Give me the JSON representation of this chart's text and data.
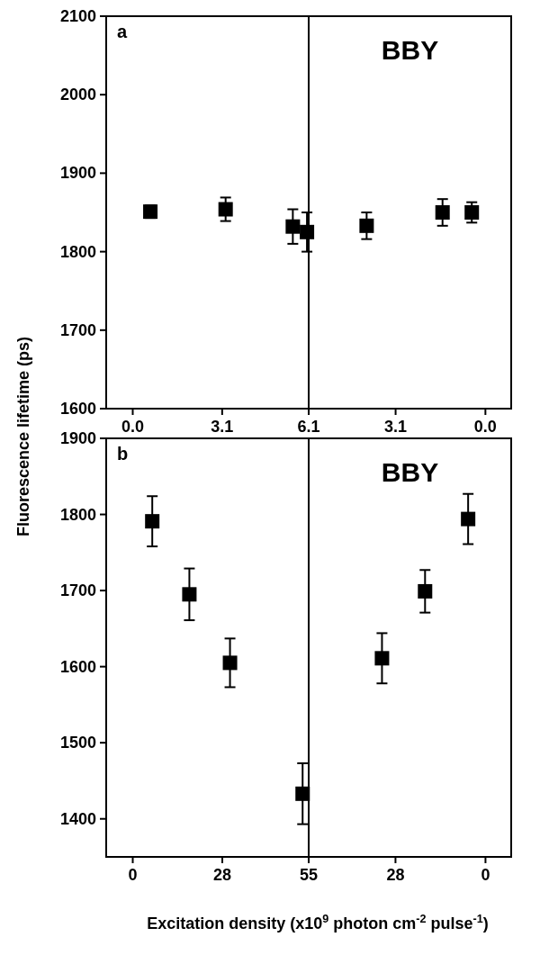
{
  "chart_data": [
    {
      "type": "scatter",
      "ylabel": "Fluorescence lifetime (ps)",
      "annotations": [
        "a"
      ],
      "xlim": [
        -0.92,
        6.1
      ],
      "xticks": [
        {
          "value": 0,
          "label": "0.0"
        },
        3.1,
        6.1
      ],
      "ylim": [
        1600,
        2100
      ],
      "yticks": [
        1600,
        1700,
        1800,
        1900,
        2000,
        2100
      ],
      "marker": "square",
      "grid": false,
      "series": [
        {
          "color": "#000000",
          "x": [
            0.61,
            3.22,
            5.55,
            6.04
          ],
          "values": [
            1851,
            1854,
            1832,
            1825
          ],
          "errors": [
            8,
            15,
            22,
            25
          ]
        }
      ]
    },
    {
      "type": "scatter",
      "annotations": [
        "BBY"
      ],
      "xlim": [
        6.1,
        -0.89
      ],
      "xticks": [
        3.1,
        {
          "value": 0,
          "label": "0.0"
        }
      ],
      "ylim": [
        1600,
        2100
      ],
      "tick_labels": "x",
      "marker": "square",
      "grid": false,
      "series": [
        {
          "color": "#000000",
          "x": [
            4.1,
            1.48,
            0.47
          ],
          "values": [
            1833,
            1850,
            1850
          ],
          "errors": [
            17,
            17,
            13
          ]
        }
      ]
    },
    {
      "type": "scatter",
      "annotations": [
        "b"
      ],
      "xlim": [
        -8.3,
        55
      ],
      "xticks": [
        0,
        28,
        55
      ],
      "ylim": [
        1350,
        1900
      ],
      "yticks": [
        1400,
        1500,
        1600,
        1700,
        1800,
        1900
      ],
      "marker": "square",
      "grid": false,
      "series": [
        {
          "color": "#000000",
          "x": [
            6.1,
            17.7,
            30.4,
            53.1
          ],
          "values": [
            1791,
            1695,
            1605,
            1433
          ],
          "errors": [
            33,
            34,
            32,
            40
          ]
        }
      ]
    },
    {
      "type": "scatter",
      "xlabel": "Excitation density (x10$^{9}$ photon cm$^{-2}$ pulse$^{-1}$)",
      "annotations": [
        "BBY"
      ],
      "xlim": [
        55,
        -8.0
      ],
      "xticks": [
        28,
        0
      ],
      "ylim": [
        1350,
        1900
      ],
      "tick_labels": "x",
      "marker": "square",
      "grid": false,
      "series": [
        {
          "color": "#000000",
          "x": [
            32.2,
            18.8,
            5.4
          ],
          "values": [
            1611,
            1699,
            1794
          ],
          "errors": [
            33,
            28,
            33
          ]
        }
      ]
    }
  ]
}
